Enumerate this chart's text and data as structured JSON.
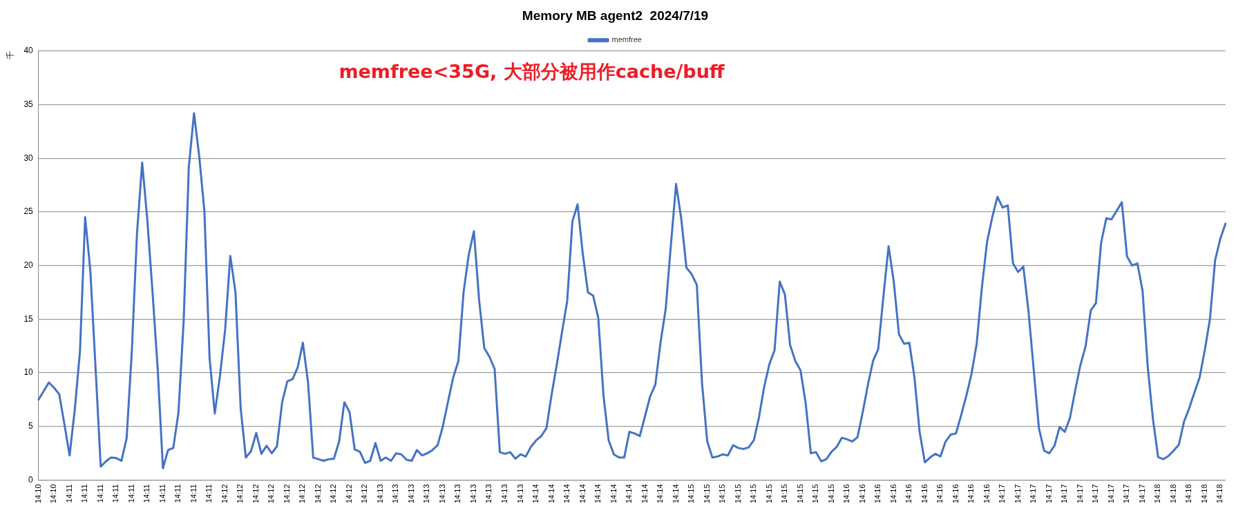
{
  "chart_data": {
    "type": "line",
    "title": "Memory MB agent2  2024/7/19",
    "ylabel": "千",
    "annotations": [
      "memfree<35G, 大部分被用作cache/buff"
    ],
    "categories": [
      "14:10",
      null,
      null,
      "14:10",
      null,
      null,
      "14:11",
      null,
      null,
      "14:11",
      null,
      null,
      "14:11",
      null,
      null,
      "14:11",
      null,
      null,
      "14:11",
      null,
      null,
      "14:11",
      null,
      null,
      "14:11",
      null,
      null,
      "14:11",
      null,
      null,
      "14:11",
      null,
      null,
      "14:11",
      null,
      null,
      "14:12",
      null,
      null,
      "14:12",
      null,
      null,
      "14:12",
      null,
      null,
      "14:12",
      null,
      null,
      "14:12",
      null,
      null,
      "14:12",
      null,
      null,
      "14:12",
      null,
      null,
      "14:12",
      null,
      null,
      "14:12",
      null,
      null,
      "14:12",
      null,
      null,
      "14:13",
      null,
      null,
      "14:13",
      null,
      null,
      "14:13",
      null,
      null,
      "14:13",
      null,
      null,
      "14:13",
      null,
      null,
      "14:13",
      null,
      null,
      "14:13",
      null,
      null,
      "14:13",
      null,
      null,
      "14:13",
      null,
      null,
      "14:13",
      null,
      null,
      "14:14",
      null,
      null,
      "14:14",
      null,
      null,
      "14:14",
      null,
      null,
      "14:14",
      null,
      null,
      "14:14",
      null,
      null,
      "14:14",
      null,
      null,
      "14:14",
      null,
      null,
      "14:14",
      null,
      null,
      "14:14",
      null,
      null,
      "14:14",
      null,
      null,
      "14:15",
      null,
      null,
      "14:15",
      null,
      null,
      "14:15",
      null,
      null,
      "14:15",
      null,
      null,
      "14:15",
      null,
      null,
      "14:15",
      null,
      null,
      "14:15",
      null,
      null,
      "14:15",
      null,
      null,
      "14:15",
      null,
      null,
      "14:15",
      null,
      null,
      "14:16",
      null,
      null,
      "14:16",
      null,
      null,
      "14:16",
      null,
      null,
      "14:16",
      null,
      null,
      "14:16",
      null,
      null,
      "14:16",
      null,
      null,
      "14:16",
      null,
      null,
      "14:16",
      null,
      null,
      "14:16",
      null,
      null,
      "14:16",
      null,
      null,
      "14:17",
      null,
      null,
      "14:17",
      null,
      null,
      "14:17",
      null,
      null,
      "14:17",
      null,
      null,
      "14:17",
      null,
      null,
      "14:17",
      null,
      null,
      "14:17",
      null,
      null,
      "14:17",
      null,
      null,
      "14:17",
      null,
      null,
      "14:17",
      null,
      null,
      "14:18",
      null,
      null,
      "14:18",
      null,
      null,
      "14:18",
      null,
      null,
      "14:18",
      null,
      null,
      "14:18",
      null
    ],
    "series": [
      {
        "name": "memfree",
        "color": "#4472c4",
        "values": [
          7.5,
          8.3,
          9.1,
          8.6,
          8.0,
          5.2,
          2.3,
          6.6,
          12.0,
          24.5,
          19.5,
          10.5,
          1.25,
          1.75,
          2.1,
          2.05,
          1.8,
          3.9,
          12.0,
          23.0,
          29.6,
          24.2,
          17.5,
          10.3,
          1.1,
          2.8,
          3.0,
          6.3,
          14.8,
          29.2,
          34.2,
          30.2,
          25.1,
          11.4,
          6.2,
          9.7,
          14.0,
          20.9,
          17.5,
          6.7,
          2.1,
          2.7,
          4.4,
          2.45,
          3.2,
          2.5,
          3.15,
          7.25,
          9.2,
          9.4,
          10.5,
          12.8,
          9.1,
          2.1,
          1.95,
          1.8,
          1.95,
          2.0,
          3.6,
          7.25,
          6.35,
          2.85,
          2.65,
          1.6,
          1.8,
          3.45,
          1.8,
          2.1,
          1.8,
          2.5,
          2.4,
          1.9,
          1.8,
          2.8,
          2.3,
          2.5,
          2.8,
          3.25,
          5.0,
          7.3,
          9.55,
          11.1,
          17.5,
          21.0,
          23.2,
          16.8,
          12.3,
          11.5,
          10.35,
          2.6,
          2.45,
          2.6,
          2.0,
          2.4,
          2.2,
          3.1,
          3.7,
          4.1,
          4.85,
          8.0,
          10.8,
          13.8,
          16.7,
          24.1,
          25.7,
          21.1,
          17.5,
          17.2,
          15.1,
          7.85,
          3.7,
          2.4,
          2.1,
          2.1,
          4.5,
          4.35,
          4.1,
          5.95,
          7.8,
          8.9,
          12.8,
          15.95,
          21.9,
          27.6,
          24.35,
          19.8,
          19.2,
          18.2,
          9.1,
          3.65,
          2.1,
          2.2,
          2.4,
          2.3,
          3.25,
          3.0,
          2.9,
          3.05,
          3.7,
          5.85,
          8.7,
          10.8,
          12.1,
          18.5,
          17.3,
          12.6,
          11.1,
          10.25,
          7.2,
          2.5,
          2.6,
          1.75,
          1.95,
          2.65,
          3.1,
          3.95,
          3.8,
          3.6,
          4.0,
          6.3,
          8.85,
          11.1,
          12.2,
          17.1,
          21.8,
          18.5,
          13.6,
          12.7,
          12.8,
          9.55,
          4.45,
          1.65,
          2.1,
          2.45,
          2.2,
          3.6,
          4.25,
          4.35,
          6.05,
          7.85,
          9.9,
          12.7,
          17.95,
          22.2,
          24.5,
          26.4,
          25.4,
          25.6,
          20.2,
          19.4,
          19.9,
          15.7,
          10.3,
          4.85,
          2.75,
          2.5,
          3.2,
          4.95,
          4.5,
          5.8,
          8.35,
          10.7,
          12.45,
          15.8,
          16.5,
          22.1,
          24.4,
          24.3,
          25.1,
          25.9,
          20.85,
          20.0,
          20.2,
          17.65,
          10.55,
          5.7,
          2.15,
          1.95,
          2.25,
          2.75,
          3.3,
          5.45,
          6.7,
          8.15,
          9.55,
          12.1,
          15.0,
          20.5,
          22.5,
          23.9
        ]
      }
    ],
    "ylim": [
      0,
      40
    ],
    "yticks": [
      0,
      5,
      10,
      15,
      20,
      25,
      30,
      35,
      40
    ],
    "grid": "y",
    "legend": "top",
    "marker": "none",
    "line_style": "solid"
  }
}
